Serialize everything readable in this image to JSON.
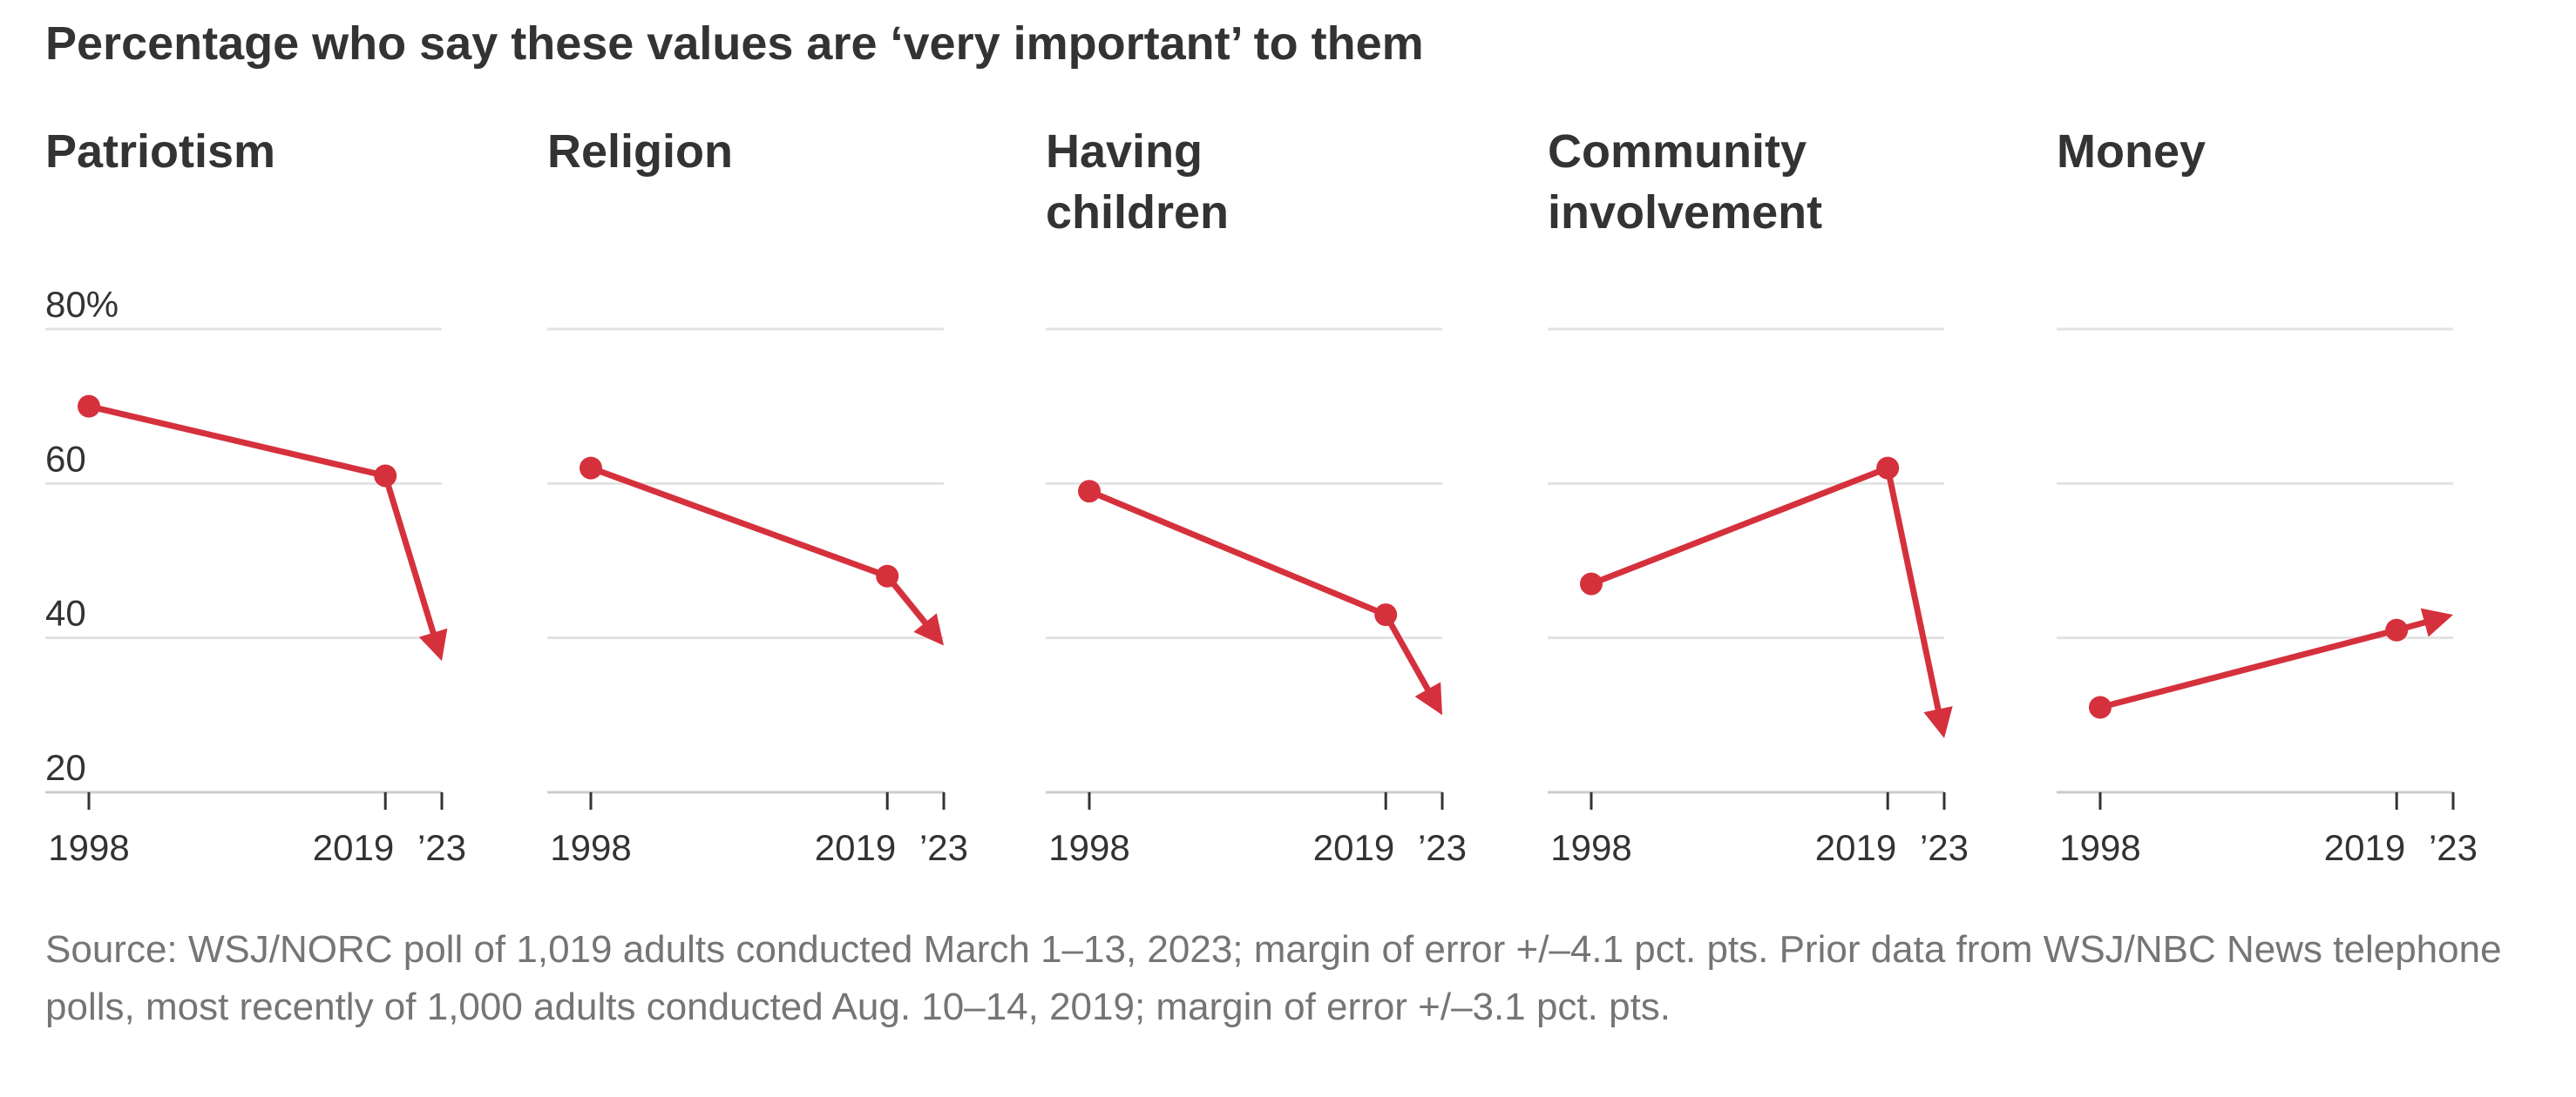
{
  "title": "Percentage who say these values are ‘very important’ to them",
  "source": "Source: WSJ/NORC poll of 1,019 adults conducted March 1–13, 2023; margin of error +/–4.1 pct. pts. Prior data from WSJ/NBC News telephone polls, most recently of 1,000 adults conducted Aug. 10–14, 2019; margin of error +/–3.1 pct. pts.",
  "colors": {
    "series": "#d5313d",
    "grid": "#e3e3e3",
    "axis": "#cccccc",
    "text": "#333333",
    "muted": "#757575"
  },
  "chart_data": [
    {
      "type": "line",
      "title": [
        "Patriotism"
      ],
      "x": [
        1998,
        2019,
        2023
      ],
      "x_tick_labels": [
        "1998",
        "2019",
        "’23"
      ],
      "values": [
        70,
        61,
        37
      ],
      "y_tick_labels": [
        "80%",
        "60",
        "40",
        "20"
      ],
      "y_ticks": [
        80,
        60,
        40,
        20
      ],
      "ylim": [
        20,
        80
      ],
      "grid": true,
      "end_marker": "arrow"
    },
    {
      "type": "line",
      "title": [
        "Religion"
      ],
      "x": [
        1998,
        2019,
        2023
      ],
      "x_tick_labels": [
        "1998",
        "2019",
        "’23"
      ],
      "values": [
        62,
        48,
        39
      ],
      "y_ticks": [
        80,
        60,
        40,
        20
      ],
      "ylim": [
        20,
        80
      ],
      "grid": true,
      "end_marker": "arrow"
    },
    {
      "type": "line",
      "title": [
        "Having",
        "children"
      ],
      "x": [
        1998,
        2019,
        2023
      ],
      "x_tick_labels": [
        "1998",
        "2019",
        "’23"
      ],
      "values": [
        59,
        43,
        30
      ],
      "y_ticks": [
        80,
        60,
        40,
        20
      ],
      "ylim": [
        20,
        80
      ],
      "grid": true,
      "end_marker": "arrow"
    },
    {
      "type": "line",
      "title": [
        "Community",
        "involvement"
      ],
      "x": [
        1998,
        2019,
        2023
      ],
      "x_tick_labels": [
        "1998",
        "2019",
        "’23"
      ],
      "values": [
        47,
        62,
        27
      ],
      "y_ticks": [
        80,
        60,
        40,
        20
      ],
      "ylim": [
        20,
        80
      ],
      "grid": true,
      "end_marker": "arrow"
    },
    {
      "type": "line",
      "title": [
        "Money"
      ],
      "x": [
        1998,
        2019,
        2023
      ],
      "x_tick_labels": [
        "1998",
        "2019",
        "’23"
      ],
      "values": [
        31,
        41,
        43
      ],
      "y_ticks": [
        80,
        60,
        40,
        20
      ],
      "ylim": [
        20,
        80
      ],
      "grid": true,
      "end_marker": "arrow"
    }
  ]
}
